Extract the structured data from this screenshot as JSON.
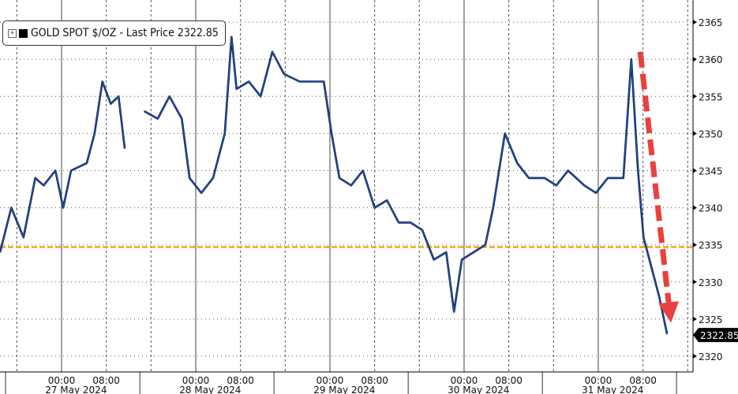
{
  "chart_data": {
    "type": "line",
    "title": "",
    "legend": {
      "label": "GOLD SPOT $/OZ - Last Price 2322.85",
      "placement": "top-left"
    },
    "last_price_tag": "2322.85",
    "ylim": [
      2318,
      2367
    ],
    "yticks": [
      2320,
      2325,
      2330,
      2335,
      2340,
      2345,
      2350,
      2355,
      2360,
      2365
    ],
    "grid": true,
    "x_day_labels": [
      "27 May 2024",
      "28 May 2024",
      "29 May 2024",
      "30 May 2024",
      "31 May 2024"
    ],
    "x_hour_labels": [
      "00:00",
      "08:00"
    ],
    "reference_line": {
      "value": 2334.7,
      "color": "#f0a818",
      "style": "dashed"
    },
    "annotation_arrow": {
      "from": [
        "05-31 07:30",
        2361
      ],
      "to": [
        "05-31 13:00",
        2324.5
      ],
      "color": "#e8413f"
    },
    "series": [
      {
        "color": "#1f4fa8",
        "segments": [
          [
            [
              "05-26 13:00",
              2334
            ],
            [
              "05-26 15:00",
              2340
            ],
            [
              "05-26 17:12",
              2336
            ],
            [
              "05-26 19:18",
              2344
            ],
            [
              "05-26 20:48",
              2343
            ],
            [
              "05-26 22:54",
              2345
            ],
            [
              "05-27 00:18",
              2340
            ],
            [
              "05-27 01:42",
              2345
            ],
            [
              "05-27 04:30",
              2346
            ],
            [
              "05-27 05:54",
              2350
            ],
            [
              "05-27 07:18",
              2357
            ],
            [
              "05-27 08:48",
              2354
            ],
            [
              "05-27 10:12",
              2355
            ],
            [
              "05-27 11:18",
              2348
            ]
          ],
          [
            [
              "05-27 14:48",
              2353
            ],
            [
              "05-27 17:12",
              2352
            ],
            [
              "05-27 19:18",
              2355
            ],
            [
              "05-27 21:30",
              2352
            ],
            [
              "05-27 22:54",
              2344
            ],
            [
              "05-28 01:00",
              2342
            ],
            [
              "05-28 03:06",
              2344
            ],
            [
              "05-28 05:12",
              2350
            ],
            [
              "05-28 06:24",
              2363
            ],
            [
              "05-28 07:18",
              2356
            ],
            [
              "05-28 09:30",
              2357
            ],
            [
              "05-28 11:36",
              2355
            ],
            [
              "05-28 13:42",
              2361
            ],
            [
              "05-28 15:48",
              2358
            ],
            [
              "05-28 18:36",
              2357
            ],
            [
              "05-28 21:30",
              2357
            ],
            [
              "05-28 22:54",
              2357
            ],
            [
              "05-29 00:18",
              2350
            ],
            [
              "05-29 01:42",
              2344
            ],
            [
              "05-29 03:48",
              2343
            ],
            [
              "05-29 05:54",
              2345
            ],
            [
              "05-29 08:00",
              2340
            ],
            [
              "05-29 10:12",
              2341
            ],
            [
              "05-29 12:18",
              2338
            ],
            [
              "05-29 14:24",
              2338
            ],
            [
              "05-29 16:30",
              2337
            ],
            [
              "05-29 18:36",
              2333
            ],
            [
              "05-29 20:48",
              2334
            ],
            [
              "05-29 22:12",
              2326
            ],
            [
              "05-29 23:36",
              2333
            ],
            [
              "05-30 01:42",
              2334
            ],
            [
              "05-30 03:48",
              2335
            ],
            [
              "05-30 05:12",
              2340
            ],
            [
              "05-30 07:18",
              2350
            ],
            [
              "05-30 09:30",
              2346
            ],
            [
              "05-30 11:36",
              2344
            ],
            [
              "05-30 14:24",
              2344
            ],
            [
              "05-30 16:30",
              2343
            ],
            [
              "05-30 18:36",
              2345
            ],
            [
              "05-30 21:30",
              2343
            ],
            [
              "05-30 23:36",
              2342
            ],
            [
              "05-31 01:42",
              2344
            ],
            [
              "05-31 04:30",
              2344
            ],
            [
              "05-31 05:54",
              2360
            ],
            [
              "05-31 07:06",
              2345
            ],
            [
              "05-31 08:06",
              2336
            ],
            [
              "05-31 09:30",
              2332
            ],
            [
              "05-31 10:54",
              2328
            ],
            [
              "05-31 12:18",
              2323
            ]
          ]
        ]
      }
    ]
  }
}
